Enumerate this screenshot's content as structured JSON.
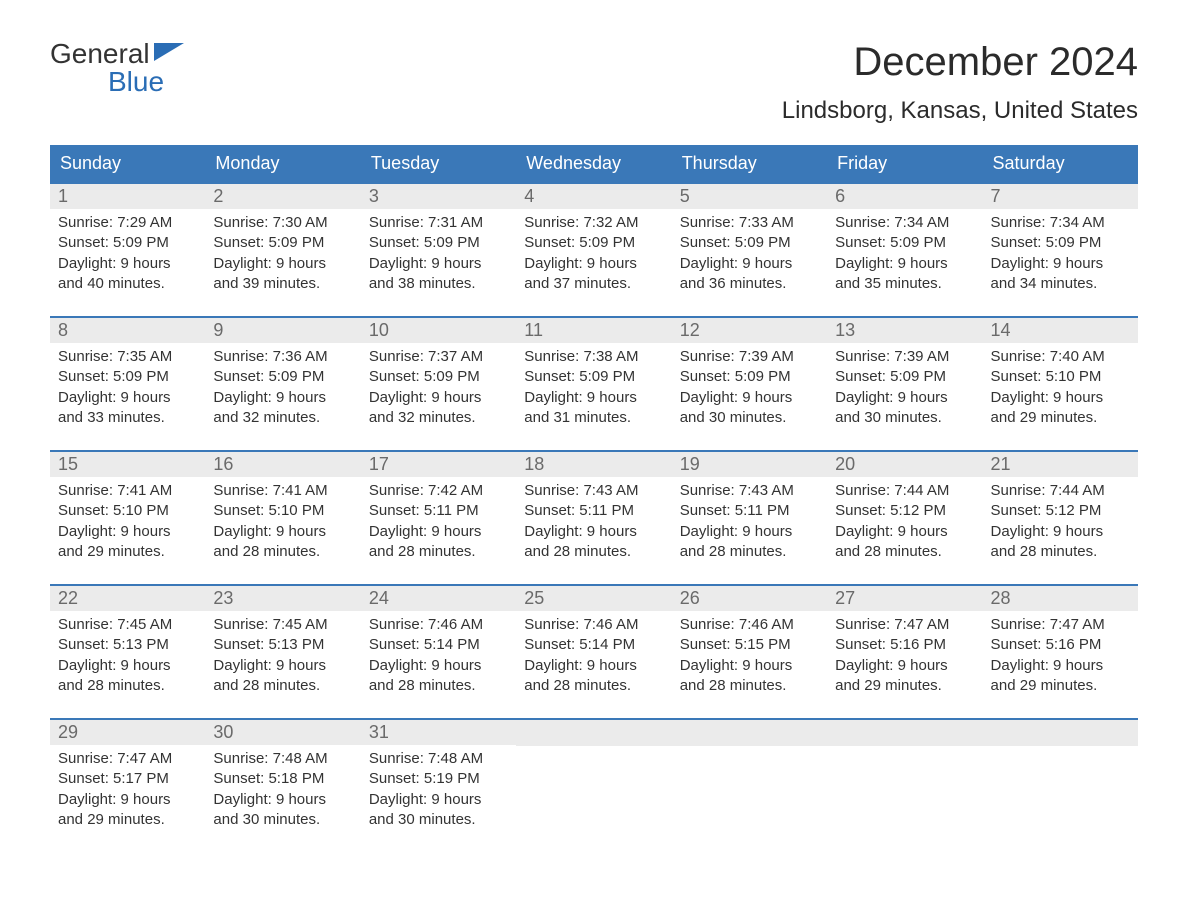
{
  "logo": {
    "top": "General",
    "bottom": "Blue",
    "text_color_top": "#333333",
    "text_color_bottom": "#2a6db5",
    "flag_color": "#2a6db5"
  },
  "title": {
    "month": "December 2024",
    "location": "Lindsborg, Kansas, United States",
    "month_fontsize": 40,
    "location_fontsize": 24,
    "text_color": "#2b2b2b"
  },
  "styling": {
    "header_bg": "#3a78b8",
    "header_text": "#ffffff",
    "daynum_bg": "#ebebeb",
    "daynum_color": "#6a6a6a",
    "week_border_color": "#3a78b8",
    "content_color": "#333333",
    "page_bg": "#ffffff"
  },
  "day_headers": [
    "Sunday",
    "Monday",
    "Tuesday",
    "Wednesday",
    "Thursday",
    "Friday",
    "Saturday"
  ],
  "weeks": [
    [
      {
        "num": "1",
        "sunrise": "Sunrise: 7:29 AM",
        "sunset": "Sunset: 5:09 PM",
        "daylight1": "Daylight: 9 hours",
        "daylight2": "and 40 minutes."
      },
      {
        "num": "2",
        "sunrise": "Sunrise: 7:30 AM",
        "sunset": "Sunset: 5:09 PM",
        "daylight1": "Daylight: 9 hours",
        "daylight2": "and 39 minutes."
      },
      {
        "num": "3",
        "sunrise": "Sunrise: 7:31 AM",
        "sunset": "Sunset: 5:09 PM",
        "daylight1": "Daylight: 9 hours",
        "daylight2": "and 38 minutes."
      },
      {
        "num": "4",
        "sunrise": "Sunrise: 7:32 AM",
        "sunset": "Sunset: 5:09 PM",
        "daylight1": "Daylight: 9 hours",
        "daylight2": "and 37 minutes."
      },
      {
        "num": "5",
        "sunrise": "Sunrise: 7:33 AM",
        "sunset": "Sunset: 5:09 PM",
        "daylight1": "Daylight: 9 hours",
        "daylight2": "and 36 minutes."
      },
      {
        "num": "6",
        "sunrise": "Sunrise: 7:34 AM",
        "sunset": "Sunset: 5:09 PM",
        "daylight1": "Daylight: 9 hours",
        "daylight2": "and 35 minutes."
      },
      {
        "num": "7",
        "sunrise": "Sunrise: 7:34 AM",
        "sunset": "Sunset: 5:09 PM",
        "daylight1": "Daylight: 9 hours",
        "daylight2": "and 34 minutes."
      }
    ],
    [
      {
        "num": "8",
        "sunrise": "Sunrise: 7:35 AM",
        "sunset": "Sunset: 5:09 PM",
        "daylight1": "Daylight: 9 hours",
        "daylight2": "and 33 minutes."
      },
      {
        "num": "9",
        "sunrise": "Sunrise: 7:36 AM",
        "sunset": "Sunset: 5:09 PM",
        "daylight1": "Daylight: 9 hours",
        "daylight2": "and 32 minutes."
      },
      {
        "num": "10",
        "sunrise": "Sunrise: 7:37 AM",
        "sunset": "Sunset: 5:09 PM",
        "daylight1": "Daylight: 9 hours",
        "daylight2": "and 32 minutes."
      },
      {
        "num": "11",
        "sunrise": "Sunrise: 7:38 AM",
        "sunset": "Sunset: 5:09 PM",
        "daylight1": "Daylight: 9 hours",
        "daylight2": "and 31 minutes."
      },
      {
        "num": "12",
        "sunrise": "Sunrise: 7:39 AM",
        "sunset": "Sunset: 5:09 PM",
        "daylight1": "Daylight: 9 hours",
        "daylight2": "and 30 minutes."
      },
      {
        "num": "13",
        "sunrise": "Sunrise: 7:39 AM",
        "sunset": "Sunset: 5:09 PM",
        "daylight1": "Daylight: 9 hours",
        "daylight2": "and 30 minutes."
      },
      {
        "num": "14",
        "sunrise": "Sunrise: 7:40 AM",
        "sunset": "Sunset: 5:10 PM",
        "daylight1": "Daylight: 9 hours",
        "daylight2": "and 29 minutes."
      }
    ],
    [
      {
        "num": "15",
        "sunrise": "Sunrise: 7:41 AM",
        "sunset": "Sunset: 5:10 PM",
        "daylight1": "Daylight: 9 hours",
        "daylight2": "and 29 minutes."
      },
      {
        "num": "16",
        "sunrise": "Sunrise: 7:41 AM",
        "sunset": "Sunset: 5:10 PM",
        "daylight1": "Daylight: 9 hours",
        "daylight2": "and 28 minutes."
      },
      {
        "num": "17",
        "sunrise": "Sunrise: 7:42 AM",
        "sunset": "Sunset: 5:11 PM",
        "daylight1": "Daylight: 9 hours",
        "daylight2": "and 28 minutes."
      },
      {
        "num": "18",
        "sunrise": "Sunrise: 7:43 AM",
        "sunset": "Sunset: 5:11 PM",
        "daylight1": "Daylight: 9 hours",
        "daylight2": "and 28 minutes."
      },
      {
        "num": "19",
        "sunrise": "Sunrise: 7:43 AM",
        "sunset": "Sunset: 5:11 PM",
        "daylight1": "Daylight: 9 hours",
        "daylight2": "and 28 minutes."
      },
      {
        "num": "20",
        "sunrise": "Sunrise: 7:44 AM",
        "sunset": "Sunset: 5:12 PM",
        "daylight1": "Daylight: 9 hours",
        "daylight2": "and 28 minutes."
      },
      {
        "num": "21",
        "sunrise": "Sunrise: 7:44 AM",
        "sunset": "Sunset: 5:12 PM",
        "daylight1": "Daylight: 9 hours",
        "daylight2": "and 28 minutes."
      }
    ],
    [
      {
        "num": "22",
        "sunrise": "Sunrise: 7:45 AM",
        "sunset": "Sunset: 5:13 PM",
        "daylight1": "Daylight: 9 hours",
        "daylight2": "and 28 minutes."
      },
      {
        "num": "23",
        "sunrise": "Sunrise: 7:45 AM",
        "sunset": "Sunset: 5:13 PM",
        "daylight1": "Daylight: 9 hours",
        "daylight2": "and 28 minutes."
      },
      {
        "num": "24",
        "sunrise": "Sunrise: 7:46 AM",
        "sunset": "Sunset: 5:14 PM",
        "daylight1": "Daylight: 9 hours",
        "daylight2": "and 28 minutes."
      },
      {
        "num": "25",
        "sunrise": "Sunrise: 7:46 AM",
        "sunset": "Sunset: 5:14 PM",
        "daylight1": "Daylight: 9 hours",
        "daylight2": "and 28 minutes."
      },
      {
        "num": "26",
        "sunrise": "Sunrise: 7:46 AM",
        "sunset": "Sunset: 5:15 PM",
        "daylight1": "Daylight: 9 hours",
        "daylight2": "and 28 minutes."
      },
      {
        "num": "27",
        "sunrise": "Sunrise: 7:47 AM",
        "sunset": "Sunset: 5:16 PM",
        "daylight1": "Daylight: 9 hours",
        "daylight2": "and 29 minutes."
      },
      {
        "num": "28",
        "sunrise": "Sunrise: 7:47 AM",
        "sunset": "Sunset: 5:16 PM",
        "daylight1": "Daylight: 9 hours",
        "daylight2": "and 29 minutes."
      }
    ],
    [
      {
        "num": "29",
        "sunrise": "Sunrise: 7:47 AM",
        "sunset": "Sunset: 5:17 PM",
        "daylight1": "Daylight: 9 hours",
        "daylight2": "and 29 minutes."
      },
      {
        "num": "30",
        "sunrise": "Sunrise: 7:48 AM",
        "sunset": "Sunset: 5:18 PM",
        "daylight1": "Daylight: 9 hours",
        "daylight2": "and 30 minutes."
      },
      {
        "num": "31",
        "sunrise": "Sunrise: 7:48 AM",
        "sunset": "Sunset: 5:19 PM",
        "daylight1": "Daylight: 9 hours",
        "daylight2": "and 30 minutes."
      },
      null,
      null,
      null,
      null
    ]
  ]
}
